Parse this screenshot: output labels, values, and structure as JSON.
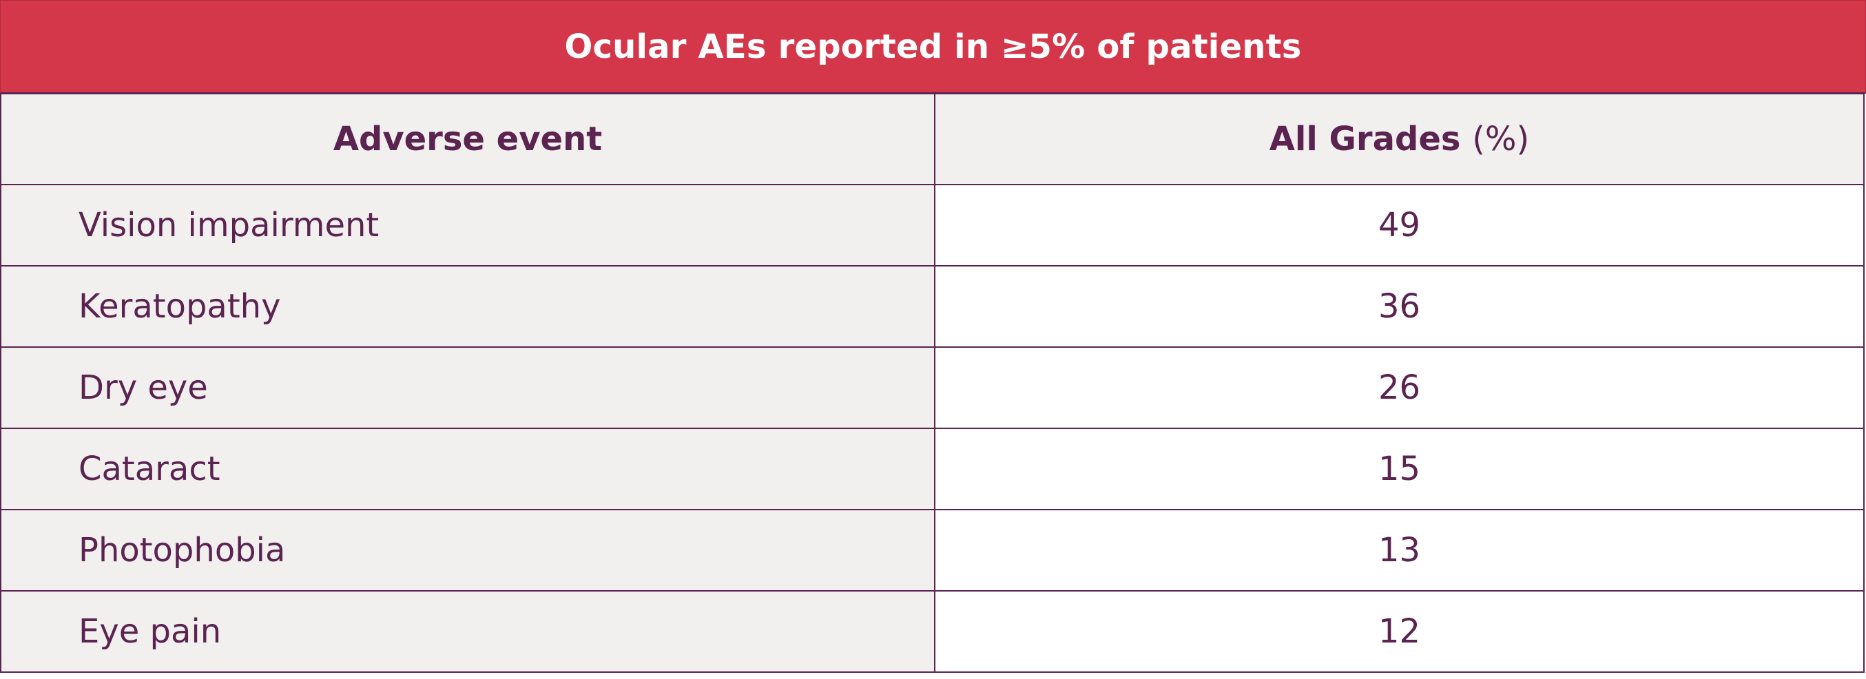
{
  "chart_data": {
    "type": "table",
    "title": "Ocular AEs reported in ≥5% of patients",
    "columns": {
      "event_header": "Adverse event",
      "value_header_bold": "All Grades",
      "value_header_unit": "(%)"
    },
    "rows": [
      {
        "event": "Vision impairment",
        "value": "49"
      },
      {
        "event": "Keratopathy",
        "value": "36"
      },
      {
        "event": "Dry eye",
        "value": "26"
      },
      {
        "event": "Cataract",
        "value": "15"
      },
      {
        "event": "Photophobia",
        "value": "13"
      },
      {
        "event": "Eye pain",
        "value": "12"
      }
    ]
  },
  "colors": {
    "title_background": "#d5374a",
    "text": "#5a2350",
    "shaded_cell": "#f2f0ef",
    "border": "#5a2350"
  }
}
